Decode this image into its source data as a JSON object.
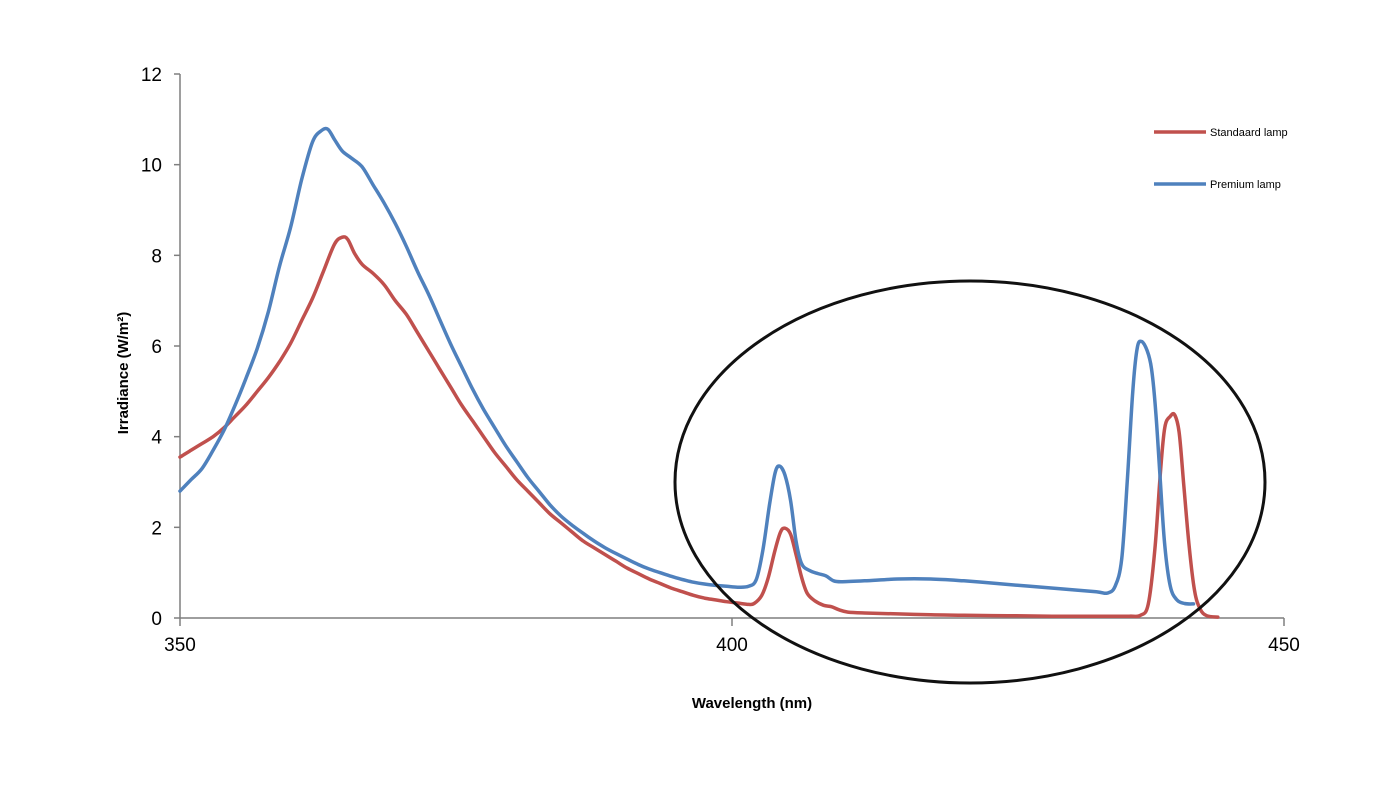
{
  "chart_data": {
    "type": "line",
    "title": "",
    "xlabel": "Wavelength (nm)",
    "ylabel": "Irradiance (W/m²)",
    "xlim": [
      350,
      450
    ],
    "ylim": [
      0,
      12
    ],
    "x_ticks": [
      350,
      400,
      450
    ],
    "y_ticks": [
      0,
      2,
      4,
      6,
      8,
      10,
      12
    ],
    "grid": false,
    "legend_position": "top-right",
    "series": [
      {
        "name": "Standaard lamp",
        "color": "#c0504d",
        "points": [
          [
            350,
            3.55
          ],
          [
            351,
            3.7
          ],
          [
            352,
            3.85
          ],
          [
            353,
            4.0
          ],
          [
            354,
            4.2
          ],
          [
            355,
            4.45
          ],
          [
            356,
            4.7
          ],
          [
            357,
            5.0
          ],
          [
            358,
            5.3
          ],
          [
            359,
            5.65
          ],
          [
            360,
            6.05
          ],
          [
            361,
            6.55
          ],
          [
            362,
            7.05
          ],
          [
            363,
            7.65
          ],
          [
            364,
            8.25
          ],
          [
            364.7,
            8.4
          ],
          [
            365.2,
            8.35
          ],
          [
            365.8,
            8.05
          ],
          [
            366.5,
            7.8
          ],
          [
            367.5,
            7.6
          ],
          [
            368.5,
            7.35
          ],
          [
            369.5,
            7.0
          ],
          [
            370.5,
            6.7
          ],
          [
            371.5,
            6.3
          ],
          [
            372.5,
            5.9
          ],
          [
            373.5,
            5.5
          ],
          [
            374.5,
            5.1
          ],
          [
            375.5,
            4.7
          ],
          [
            376.5,
            4.35
          ],
          [
            377.5,
            4.0
          ],
          [
            378.5,
            3.65
          ],
          [
            379.5,
            3.35
          ],
          [
            380.5,
            3.05
          ],
          [
            381.5,
            2.8
          ],
          [
            382.5,
            2.55
          ],
          [
            383.5,
            2.3
          ],
          [
            384.5,
            2.1
          ],
          [
            385.5,
            1.9
          ],
          [
            386.5,
            1.7
          ],
          [
            387.5,
            1.55
          ],
          [
            388.5,
            1.4
          ],
          [
            389.5,
            1.25
          ],
          [
            390.5,
            1.1
          ],
          [
            391.5,
            0.98
          ],
          [
            392.5,
            0.86
          ],
          [
            393.5,
            0.76
          ],
          [
            394.5,
            0.66
          ],
          [
            395.5,
            0.58
          ],
          [
            396.5,
            0.5
          ],
          [
            397.5,
            0.44
          ],
          [
            398.5,
            0.4
          ],
          [
            399.5,
            0.36
          ],
          [
            400.5,
            0.33
          ],
          [
            401.5,
            0.3
          ],
          [
            402,
            0.32
          ],
          [
            402.7,
            0.5
          ],
          [
            403.3,
            0.9
          ],
          [
            403.9,
            1.5
          ],
          [
            404.4,
            1.9
          ],
          [
            404.8,
            1.98
          ],
          [
            405.3,
            1.85
          ],
          [
            405.8,
            1.4
          ],
          [
            406.3,
            0.9
          ],
          [
            406.8,
            0.55
          ],
          [
            407.5,
            0.38
          ],
          [
            408.3,
            0.28
          ],
          [
            409,
            0.25
          ],
          [
            409.7,
            0.18
          ],
          [
            410.5,
            0.13
          ],
          [
            412,
            0.11
          ],
          [
            415,
            0.09
          ],
          [
            418,
            0.07
          ],
          [
            421,
            0.06
          ],
          [
            425,
            0.05
          ],
          [
            429,
            0.04
          ],
          [
            433,
            0.04
          ],
          [
            436,
            0.04
          ],
          [
            437,
            0.06
          ],
          [
            437.7,
            0.3
          ],
          [
            438.3,
            1.5
          ],
          [
            438.8,
            3.2
          ],
          [
            439.2,
            4.2
          ],
          [
            439.7,
            4.45
          ],
          [
            440.1,
            4.48
          ],
          [
            440.5,
            4.1
          ],
          [
            440.9,
            3.0
          ],
          [
            441.4,
            1.6
          ],
          [
            441.9,
            0.6
          ],
          [
            442.4,
            0.2
          ],
          [
            443,
            0.05
          ],
          [
            444,
            0.02
          ]
        ]
      },
      {
        "name": "Premium lamp",
        "color": "#4f81bd",
        "points": [
          [
            350,
            2.8
          ],
          [
            351,
            3.05
          ],
          [
            352,
            3.3
          ],
          [
            353,
            3.7
          ],
          [
            354,
            4.15
          ],
          [
            355,
            4.7
          ],
          [
            356,
            5.3
          ],
          [
            357,
            5.95
          ],
          [
            358,
            6.75
          ],
          [
            359,
            7.75
          ],
          [
            360,
            8.6
          ],
          [
            361,
            9.65
          ],
          [
            362,
            10.5
          ],
          [
            362.8,
            10.75
          ],
          [
            363.4,
            10.78
          ],
          [
            364,
            10.55
          ],
          [
            364.7,
            10.3
          ],
          [
            365.5,
            10.15
          ],
          [
            366.5,
            9.95
          ],
          [
            367.5,
            9.55
          ],
          [
            368.5,
            9.15
          ],
          [
            369.5,
            8.7
          ],
          [
            370.5,
            8.2
          ],
          [
            371.5,
            7.65
          ],
          [
            372.5,
            7.15
          ],
          [
            373.5,
            6.6
          ],
          [
            374.5,
            6.05
          ],
          [
            375.5,
            5.55
          ],
          [
            376.5,
            5.05
          ],
          [
            377.5,
            4.6
          ],
          [
            378.5,
            4.2
          ],
          [
            379.5,
            3.8
          ],
          [
            380.5,
            3.45
          ],
          [
            381.5,
            3.1
          ],
          [
            382.5,
            2.8
          ],
          [
            383.5,
            2.5
          ],
          [
            384.5,
            2.25
          ],
          [
            385.5,
            2.05
          ],
          [
            386.5,
            1.87
          ],
          [
            387.5,
            1.7
          ],
          [
            388.5,
            1.55
          ],
          [
            389.5,
            1.42
          ],
          [
            390.5,
            1.3
          ],
          [
            391.5,
            1.18
          ],
          [
            392.5,
            1.08
          ],
          [
            393.5,
            1.0
          ],
          [
            394.5,
            0.92
          ],
          [
            395.5,
            0.85
          ],
          [
            396.5,
            0.79
          ],
          [
            397.5,
            0.75
          ],
          [
            398.5,
            0.72
          ],
          [
            399.5,
            0.7
          ],
          [
            400.5,
            0.68
          ],
          [
            401.5,
            0.7
          ],
          [
            402.2,
            0.85
          ],
          [
            402.8,
            1.5
          ],
          [
            403.4,
            2.5
          ],
          [
            403.9,
            3.2
          ],
          [
            404.3,
            3.35
          ],
          [
            404.8,
            3.15
          ],
          [
            405.3,
            2.6
          ],
          [
            405.8,
            1.7
          ],
          [
            406.3,
            1.2
          ],
          [
            407,
            1.05
          ],
          [
            407.8,
            0.98
          ],
          [
            408.5,
            0.93
          ],
          [
            409.2,
            0.82
          ],
          [
            410,
            0.8
          ],
          [
            412,
            0.82
          ],
          [
            415,
            0.86
          ],
          [
            418,
            0.86
          ],
          [
            421,
            0.82
          ],
          [
            424,
            0.76
          ],
          [
            427,
            0.7
          ],
          [
            430,
            0.64
          ],
          [
            433,
            0.58
          ],
          [
            434,
            0.55
          ],
          [
            434.7,
            0.7
          ],
          [
            435.3,
            1.3
          ],
          [
            435.8,
            3.0
          ],
          [
            436.3,
            5.0
          ],
          [
            436.7,
            5.95
          ],
          [
            437.1,
            6.1
          ],
          [
            437.6,
            5.9
          ],
          [
            438,
            5.5
          ],
          [
            438.4,
            4.5
          ],
          [
            438.8,
            3.0
          ],
          [
            439.2,
            1.6
          ],
          [
            439.7,
            0.7
          ],
          [
            440.3,
            0.4
          ],
          [
            441,
            0.32
          ],
          [
            441.8,
            0.31
          ]
        ]
      }
    ]
  }
}
